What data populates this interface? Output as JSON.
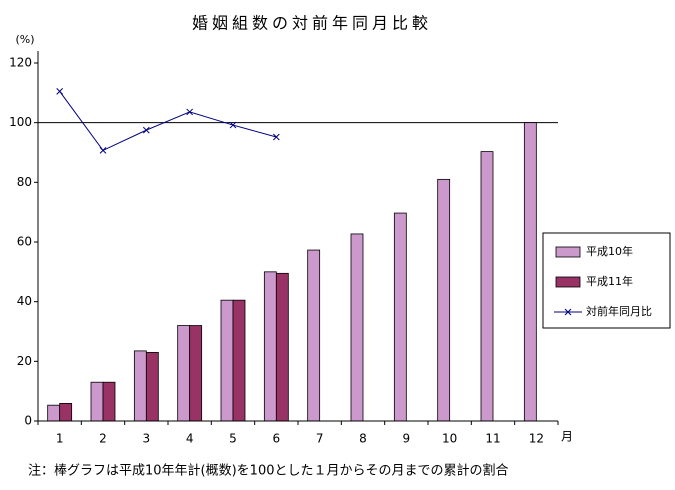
{
  "chart_data": {
    "type": "bar_line",
    "title": "婚姻組数の対前年同月比較",
    "y_unit": "(%)",
    "x_unit": "月",
    "note": "注：棒グラフは平成10年年計(概数)を100とした１月からその月までの累計の割合",
    "categories": [
      "1",
      "2",
      "3",
      "4",
      "5",
      "6",
      "7",
      "8",
      "9",
      "10",
      "11",
      "12"
    ],
    "series": [
      {
        "name": "平成10年",
        "kind": "bar",
        "color": "#cc99cc",
        "values": [
          5.3,
          13,
          23.5,
          32,
          40.5,
          50,
          57.3,
          62.7,
          69.7,
          81,
          90.3,
          100
        ]
      },
      {
        "name": "平成11年",
        "kind": "bar",
        "color": "#993366",
        "values": [
          5.9,
          13,
          23,
          32,
          40.5,
          49.5,
          null,
          null,
          null,
          null,
          null,
          null
        ]
      },
      {
        "name": "対前年同月比",
        "kind": "line",
        "color": "#000080",
        "values": [
          110.5,
          90.7,
          97.5,
          103.6,
          99.2,
          95.2,
          null,
          null,
          null,
          null,
          null,
          null
        ]
      }
    ],
    "reference_line": 100,
    "ylim": [
      0,
      120
    ],
    "yticks": [
      0,
      20,
      40,
      60,
      80,
      100,
      120
    ]
  }
}
